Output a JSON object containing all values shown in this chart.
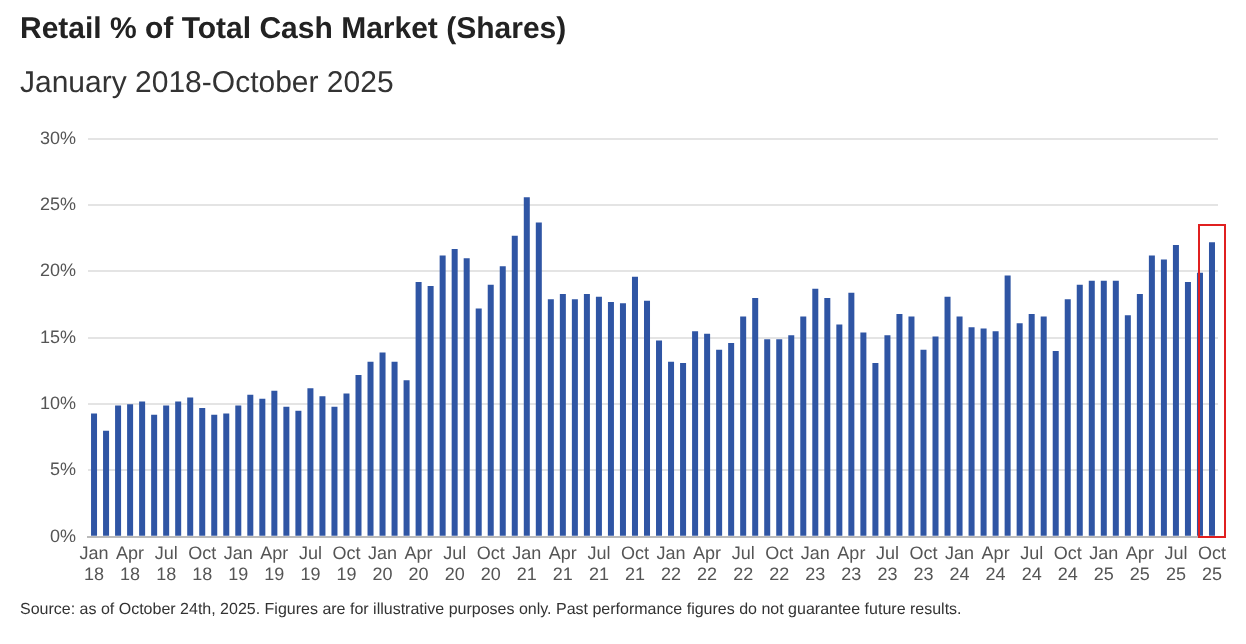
{
  "chart_data": {
    "type": "bar",
    "title": "Retail % of Total Cash Market (Shares)",
    "subtitle": "January 2018-October 2025",
    "categories": [
      "Jan 18",
      null,
      null,
      "Apr 18",
      null,
      null,
      "Jul 18",
      null,
      null,
      "Oct 18",
      null,
      null,
      "Jan 19",
      null,
      null,
      "Apr 19",
      null,
      null,
      "Jul 19",
      null,
      null,
      "Oct 19",
      null,
      null,
      "Jan 20",
      null,
      null,
      "Apr 20",
      null,
      null,
      "Jul 20",
      null,
      null,
      "Oct 20",
      null,
      null,
      "Jan 21",
      null,
      null,
      "Apr 21",
      null,
      null,
      "Jul 21",
      null,
      null,
      "Oct 21",
      null,
      null,
      "Jan 22",
      null,
      null,
      "Apr 22",
      null,
      null,
      "Jul 22",
      null,
      null,
      "Oct 22",
      null,
      null,
      "Jan 23",
      null,
      null,
      "Apr 23",
      null,
      null,
      "Jul 23",
      null,
      null,
      "Oct 23",
      null,
      null,
      "Jan 24",
      null,
      null,
      "Apr 24",
      null,
      null,
      "Jul 24",
      null,
      null,
      "Oct 24",
      null,
      null,
      "Jan 25",
      null,
      null,
      "Apr 25",
      null,
      null,
      "Jul 25",
      null,
      null,
      "Oct 25"
    ],
    "values": [
      9.3,
      8.0,
      9.9,
      10.0,
      10.2,
      9.2,
      9.9,
      10.2,
      10.5,
      9.7,
      9.2,
      9.3,
      9.9,
      10.7,
      10.4,
      11.0,
      9.8,
      9.5,
      11.2,
      10.6,
      9.8,
      10.8,
      12.2,
      13.2,
      13.9,
      13.2,
      11.8,
      19.2,
      18.9,
      21.2,
      21.7,
      21.0,
      17.2,
      19.0,
      20.4,
      22.7,
      25.6,
      23.7,
      17.9,
      18.3,
      17.9,
      18.3,
      18.1,
      17.7,
      17.6,
      19.6,
      17.8,
      14.8,
      13.2,
      13.1,
      15.5,
      15.3,
      14.1,
      14.6,
      16.6,
      18.0,
      14.9,
      14.9,
      15.2,
      16.6,
      18.7,
      18.0,
      16.0,
      18.4,
      15.4,
      13.1,
      15.2,
      16.8,
      16.6,
      14.1,
      15.1,
      18.1,
      16.6,
      15.8,
      15.7,
      15.5,
      19.7,
      16.1,
      16.8,
      16.6,
      14.0,
      17.9,
      19.0,
      19.3,
      19.3,
      19.3,
      16.7,
      18.3,
      21.2,
      20.9,
      22.0,
      19.2,
      19.9,
      22.2
    ],
    "color": "#2f55a4",
    "ylim": [
      0,
      30
    ],
    "yticks": [
      {
        "value": 0,
        "label": "0%"
      },
      {
        "value": 5,
        "label": "5%"
      },
      {
        "value": 10,
        "label": "10%"
      },
      {
        "value": 15,
        "label": "15%"
      },
      {
        "value": 20,
        "label": "20%"
      },
      {
        "value": 25,
        "label": "25%"
      },
      {
        "value": 30,
        "label": "30%"
      }
    ],
    "grid": "y",
    "legend": false,
    "annotations": [
      "Source: as of October 24th, 2025. Figures are for illustrative purposes only. Past performance figures do not guarantee future results."
    ]
  }
}
